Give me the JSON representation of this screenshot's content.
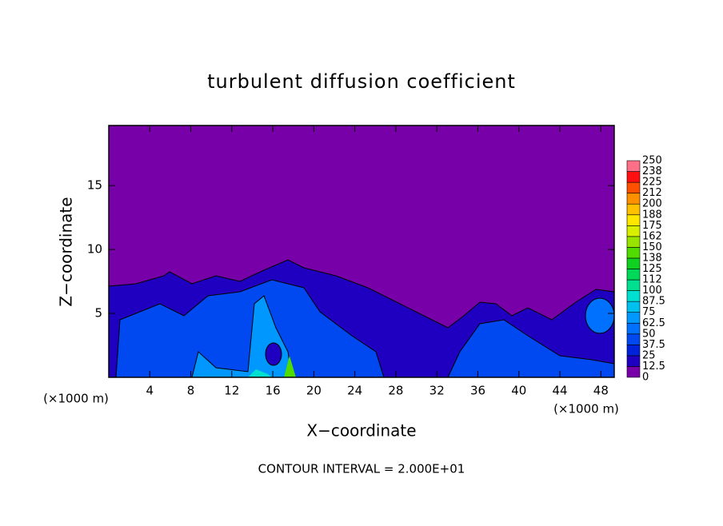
{
  "chart_data": {
    "type": "contour",
    "title": "turbulent diffusion coefficient",
    "xlabel": "X−coordinate",
    "ylabel": "Z−coordinate",
    "x_unit_left": "(×1000 m)",
    "x_unit_right": "(×1000 m)",
    "footnote": "CONTOUR INTERVAL = 2.000E+01",
    "xlim": [
      0,
      49.3
    ],
    "xticks": [
      4,
      8,
      12,
      16,
      20,
      24,
      28,
      32,
      36,
      40,
      44,
      48
    ],
    "ylim": [
      0,
      19.7
    ],
    "yticks": [
      5,
      10,
      15
    ],
    "colorbar": {
      "levels": [
        0,
        12.5,
        25,
        37.5,
        50,
        62.5,
        75,
        87.5,
        100,
        112,
        125,
        138,
        150,
        162,
        175,
        188,
        200,
        212,
        225,
        238,
        250
      ],
      "colors": [
        "#7800a8",
        "#2000c0",
        "#0022d8",
        "#0048f0",
        "#0070ff",
        "#0098ff",
        "#00c0f0",
        "#00e0d0",
        "#00e090",
        "#00d858",
        "#10d020",
        "#50dc00",
        "#98e400",
        "#d8f000",
        "#ffe800",
        "#ffc000",
        "#ff9000",
        "#ff5000",
        "#ff1010",
        "#ff7088"
      ]
    }
  }
}
